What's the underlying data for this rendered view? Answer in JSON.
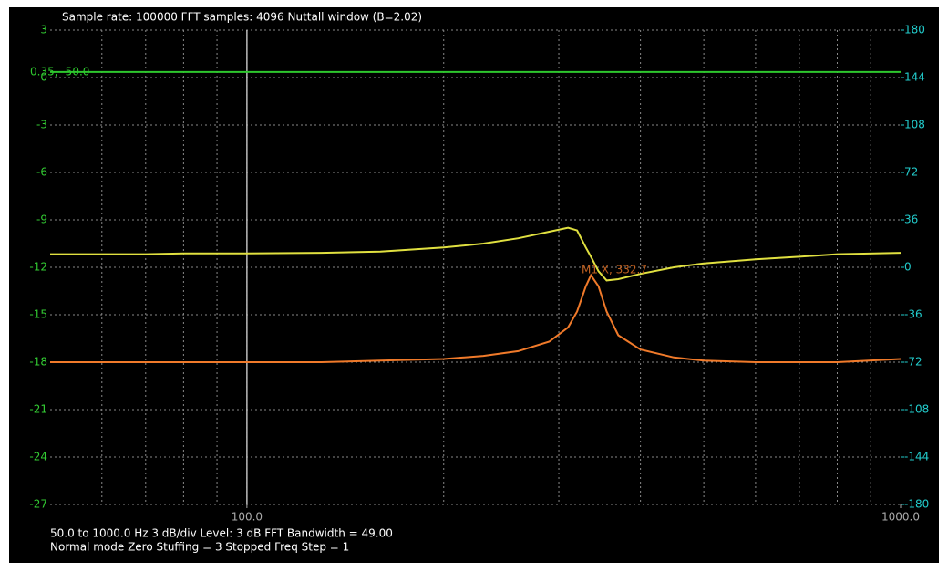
{
  "header": "Sample rate: 100000   FFT samples: 4096   Nuttall window (B=2.02)",
  "footer": [
    "50.0 to 1000.0 Hz  3 dB/div  Level: 3 dB  FFT Bandwidth = 49.00",
    "Normal mode Zero Stuffing = 3  Stopped   Freq Step = 1"
  ],
  "chart_data": {
    "type": "line",
    "log_x": true,
    "grid": true,
    "x": [
      50,
      60,
      70,
      80,
      100,
      130,
      160,
      200,
      230,
      260,
      290,
      310,
      320,
      330,
      336,
      345,
      355,
      370,
      400,
      450,
      500,
      600,
      700,
      800,
      1000
    ],
    "xlim": [
      50,
      1000
    ],
    "xticks": [
      {
        "value": 100,
        "label": "100.0"
      },
      {
        "value": 1000,
        "label": "1000.0"
      }
    ],
    "xgrid": [
      60,
      70,
      80,
      90,
      100,
      200,
      300,
      400,
      500,
      600,
      700,
      800,
      900
    ],
    "ylim": [
      -27,
      3
    ],
    "yticks": [
      3,
      0,
      -3,
      -6,
      -9,
      -12,
      -15,
      -18,
      -21,
      -24,
      -27
    ],
    "y2lim": [
      -180,
      180
    ],
    "y2ticks": [
      180,
      144,
      108,
      72,
      36,
      0,
      -36,
      -72,
      -108,
      -144,
      -180
    ],
    "series": [
      {
        "color": "#e0e040",
        "axis": "y2",
        "values": [
          10,
          10,
          10,
          10.5,
          10.5,
          11,
          12,
          15,
          18,
          22,
          27,
          30,
          28,
          15,
          8,
          -3,
          -10,
          -9,
          -5,
          0,
          3,
          6,
          8,
          10,
          11
        ]
      },
      {
        "color": "#f07a2a",
        "values": [
          -18,
          -18,
          -18,
          -18,
          -18,
          -18,
          -17.9,
          -17.8,
          -17.6,
          -17.3,
          -16.7,
          -15.8,
          -14.8,
          -13.2,
          -12.5,
          -13.2,
          -14.8,
          -16.3,
          -17.2,
          -17.7,
          -17.9,
          -18,
          -18,
          -18,
          -17.8
        ]
      }
    ],
    "level": {
      "value": 0.35,
      "label": "0.35, -50.0",
      "color": "#2ec82e"
    },
    "cursor_x": 100,
    "peak_label": "M1 X, 332.7"
  }
}
